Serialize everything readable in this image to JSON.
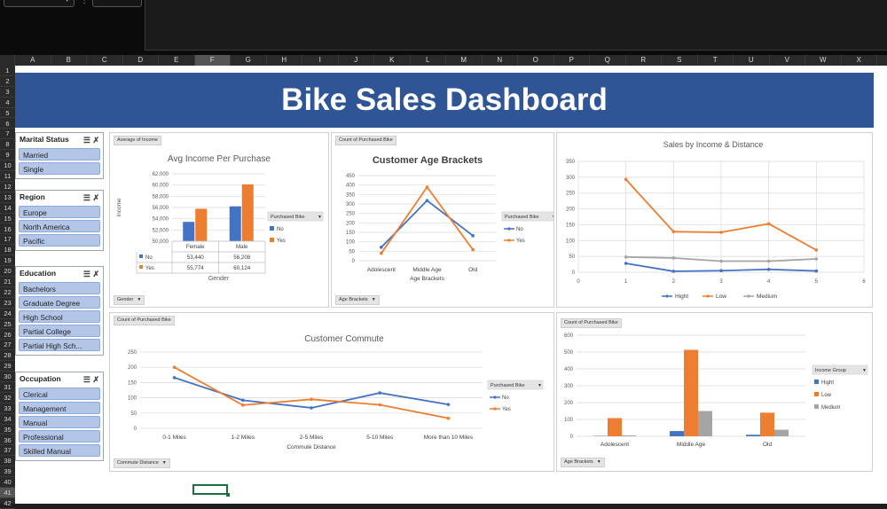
{
  "title": "Bike Sales Dashboard",
  "column_headers": [
    "A",
    "B",
    "C",
    "D",
    "E",
    "F",
    "G",
    "H",
    "I",
    "J",
    "K",
    "L",
    "M",
    "N",
    "O",
    "P",
    "Q",
    "R",
    "S",
    "T",
    "U",
    "V",
    "W",
    "X"
  ],
  "selected_column": "F",
  "row_headers": [
    "1",
    "2",
    "3",
    "4",
    "5",
    "6",
    "7",
    "8",
    "9",
    "10",
    "11",
    "12",
    "13",
    "14",
    "15",
    "16",
    "17",
    "18",
    "19",
    "20",
    "21",
    "22",
    "23",
    "24",
    "25",
    "26",
    "27",
    "28",
    "29",
    "30",
    "31",
    "32",
    "33",
    "34",
    "35",
    "36",
    "37",
    "38",
    "39",
    "40",
    "41",
    "42"
  ],
  "selected_row": "41",
  "slicers": [
    {
      "title": "Marital Status",
      "items": [
        "Married",
        "Single"
      ]
    },
    {
      "title": "Region",
      "items": [
        "Europe",
        "North America",
        "Pacific"
      ]
    },
    {
      "title": "Education",
      "items": [
        "Bachelors",
        "Graduate Degree",
        "High School",
        "Partial College",
        "Partial High Sch..."
      ]
    },
    {
      "title": "Occupation",
      "items": [
        "Clerical",
        "Management",
        "Manual",
        "Professional",
        "Skilled Manual"
      ]
    }
  ],
  "cards": {
    "income": {
      "field_tag": "Average of Income",
      "axis_tag": "Gender",
      "legend_title": "Purchased Bike"
    },
    "age": {
      "field_tag": "Count of Purchased Bike",
      "axis_tag": "Age Brackets",
      "legend_title": "Purchased Bike"
    },
    "distance": {},
    "commute": {
      "field_tag": "Count of Purchased Bike",
      "axis_tag": "Commute Distance",
      "legend_title": "Purchased Bike"
    },
    "agegroup": {
      "field_tag": "Count of Purchased Bike",
      "axis_tag": "Age Brackets",
      "legend_title": "Income Group"
    }
  },
  "colors": {
    "blue": "#4472c4",
    "orange": "#ed7d31",
    "gray": "#a5a5a5",
    "banner": "#2f5597",
    "grid": "#d9d9d9"
  },
  "chart_data": [
    {
      "id": "income",
      "type": "bar",
      "title": "Avg Income Per Purchase",
      "categories": [
        "Female",
        "Male"
      ],
      "series": [
        {
          "name": "No",
          "values": [
            53440,
            56208
          ],
          "labels": [
            "53,440",
            "56,208"
          ],
          "color": "#4472c4"
        },
        {
          "name": "Yes",
          "values": [
            55774,
            60124
          ],
          "labels": [
            "55,774",
            "60,124"
          ],
          "color": "#ed7d31"
        }
      ],
      "xlabel": "Gender",
      "ylabel": "Income",
      "ylim": [
        50000,
        62000
      ],
      "yticks": [
        "50,000",
        "52,000",
        "54,000",
        "56,000",
        "58,000",
        "60,000",
        "62,000"
      ],
      "data_table": true,
      "legend": "right"
    },
    {
      "id": "age",
      "type": "line",
      "title": "Customer Age Brackets",
      "categories": [
        "Adolescent",
        "Middle Age",
        "Old"
      ],
      "series": [
        {
          "name": "No",
          "values": [
            71,
            318,
            132
          ],
          "color": "#4472c4"
        },
        {
          "name": "Yes",
          "values": [
            39,
            389,
            58
          ],
          "color": "#ed7d31"
        }
      ],
      "xlabel": "Age Brackets",
      "ylabel": "",
      "ylim": [
        0,
        450
      ],
      "yticks": [
        "0",
        "50",
        "100",
        "150",
        "200",
        "250",
        "300",
        "350",
        "400",
        "450"
      ],
      "legend": "right"
    },
    {
      "id": "distance",
      "type": "scatter",
      "title": "Sales by Income & Distance",
      "series": [
        {
          "name": "Hight",
          "x": [
            1,
            2,
            3,
            4,
            5
          ],
          "y": [
            28,
            3,
            5,
            9,
            4
          ],
          "color": "#4472c4"
        },
        {
          "name": "Low",
          "x": [
            1,
            2,
            3,
            4,
            5
          ],
          "y": [
            293,
            128,
            126,
            153,
            70
          ],
          "color": "#ed7d31"
        },
        {
          "name": "Medium",
          "x": [
            1,
            2,
            3,
            4,
            5
          ],
          "y": [
            48,
            45,
            35,
            35,
            42
          ],
          "color": "#a5a5a5"
        }
      ],
      "xlim": [
        0,
        6
      ],
      "ylim": [
        0,
        350
      ],
      "xticks": [
        "0",
        "1",
        "2",
        "3",
        "4",
        "5",
        "6"
      ],
      "yticks": [
        "0",
        "50",
        "100",
        "150",
        "200",
        "250",
        "300",
        "350"
      ],
      "legend": "bottom"
    },
    {
      "id": "commute",
      "type": "line",
      "title": "Customer Commute",
      "categories": [
        "0-1 Miles",
        "1-2 Miles",
        "2-5 Miles",
        "5-10 Miles",
        "More than 10 Miles"
      ],
      "series": [
        {
          "name": "No",
          "values": [
            166,
            92,
            67,
            116,
            78
          ],
          "color": "#4472c4"
        },
        {
          "name": "Yes",
          "values": [
            200,
            76,
            95,
            77,
            33
          ],
          "color": "#ed7d31"
        }
      ],
      "xlabel": "Commute Distance",
      "ylabel": "",
      "ylim": [
        0,
        250
      ],
      "yticks": [
        "0",
        "50",
        "100",
        "150",
        "200",
        "250"
      ],
      "legend": "right"
    },
    {
      "id": "agegroup",
      "type": "bar",
      "title": "",
      "categories": [
        "Adolescent",
        "Middle Age",
        "Old"
      ],
      "series": [
        {
          "name": "Hight",
          "values": [
            2,
            31,
            9
          ],
          "color": "#4472c4"
        },
        {
          "name": "Low",
          "values": [
            108,
            513,
            140
          ],
          "color": "#ed7d31"
        },
        {
          "name": "Medium",
          "values": [
            5,
            150,
            39
          ],
          "color": "#a5a5a5"
        }
      ],
      "xlabel": "",
      "ylabel": "",
      "ylim": [
        0,
        600
      ],
      "yticks": [
        "0",
        "100",
        "200",
        "300",
        "400",
        "500",
        "600"
      ],
      "legend": "right"
    }
  ]
}
